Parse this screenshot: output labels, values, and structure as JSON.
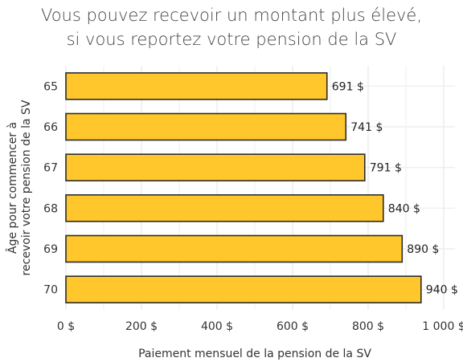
{
  "chart_data": {
    "type": "bar",
    "orientation": "horizontal",
    "title": [
      "Vous pouvez recevoir un montant plus élevé,",
      "si vous reportez votre pension de la SV"
    ],
    "categories": [
      "65",
      "66",
      "67",
      "68",
      "69",
      "70"
    ],
    "values": [
      691,
      741,
      791,
      840,
      890,
      940
    ],
    "value_labels": [
      "691 $",
      "741 $",
      "791 $",
      "840 $",
      "890 $",
      "940 $"
    ],
    "xlabel": "Paiement mensuel de la pension de la SV",
    "ylabel": [
      "Âge pour commencer à",
      "recevoir votre pension de la SV"
    ],
    "xlim": [
      0,
      1000
    ],
    "xticks": [
      0,
      200,
      400,
      600,
      800,
      1000
    ],
    "xtick_labels": [
      "0 $",
      "200 $",
      "400 $",
      "600 $",
      "800 $",
      "1 000 $"
    ],
    "grid": true,
    "legend": "none",
    "colors": {
      "bar_fill": "#FFC72C",
      "bar_stroke": "#2b2b2b",
      "grid": "#ebebeb"
    }
  }
}
